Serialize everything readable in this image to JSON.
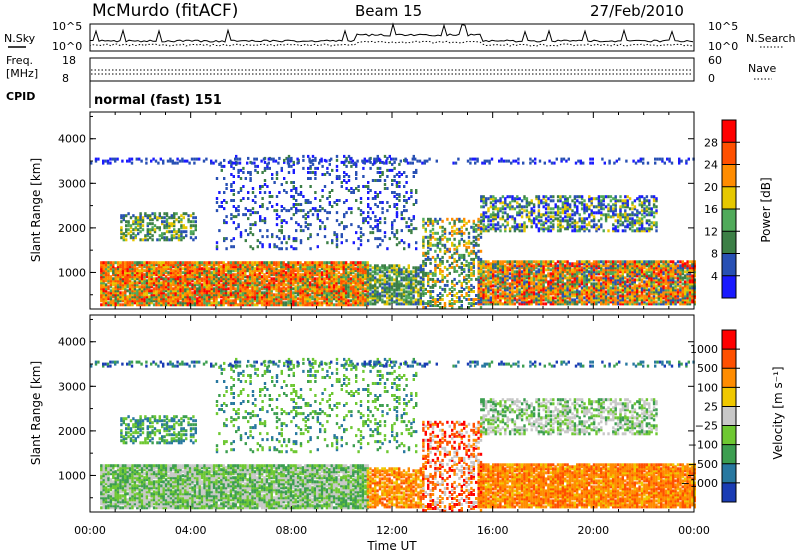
{
  "header": {
    "station": "McMurdo (fitACF)",
    "beam": "Beam 15",
    "date": "27/Feb/2010",
    "cpid_label": "CPID",
    "cpid_value": "normal (fast) 151"
  },
  "top_panels": {
    "nsky_label": "N.Sky",
    "nsearch_label": "N.Search",
    "nsky_ticks": [
      "10^5",
      "10^0"
    ],
    "nsearch_ticks": [
      "10^5",
      "10^0"
    ],
    "freq_label": "Freq.",
    "freq_unit": "[MHz]",
    "freq_ticks": [
      "18",
      "8"
    ],
    "nave_label": "Nave",
    "nave_ticks": [
      "60",
      "0"
    ]
  },
  "chart_data": [
    {
      "type": "heatmap",
      "name": "power",
      "ylabel": "Slant Range [km]",
      "xlabel": "",
      "ylim": [
        180,
        4600
      ],
      "yticks": [
        "4000",
        "3000",
        "2000",
        "1000"
      ],
      "colorbar_label": "Power [dB]",
      "colorbar_ticks": [
        "28",
        "24",
        "20",
        "16",
        "12",
        "8",
        "4"
      ],
      "colors": [
        "#1a1aff",
        "#2850b4",
        "#3c7f46",
        "#50aa5a",
        "#e6c800",
        "#ff8c00",
        "#ff5000",
        "#ff0000"
      ]
    },
    {
      "type": "heatmap",
      "name": "velocity",
      "ylabel": "Slant Range [km]",
      "xlabel": "Time UT",
      "ylim": [
        180,
        4600
      ],
      "yticks": [
        "4000",
        "3000",
        "2000",
        "1000"
      ],
      "xticks": [
        "00:00",
        "04:00",
        "08:00",
        "12:00",
        "16:00",
        "20:00",
        "00:00"
      ],
      "colorbar_label": "Velocity [m s⁻¹]",
      "colorbar_ticks": [
        "1000",
        "500",
        "100",
        "25",
        "−25",
        "−100",
        "−500",
        "−1000"
      ],
      "colors": [
        "#1a3cb4",
        "#2878a0",
        "#3c9e50",
        "#6ec832",
        "#c8c8c8",
        "#f0c800",
        "#ff8c00",
        "#ff5000",
        "#ff0000"
      ]
    }
  ]
}
